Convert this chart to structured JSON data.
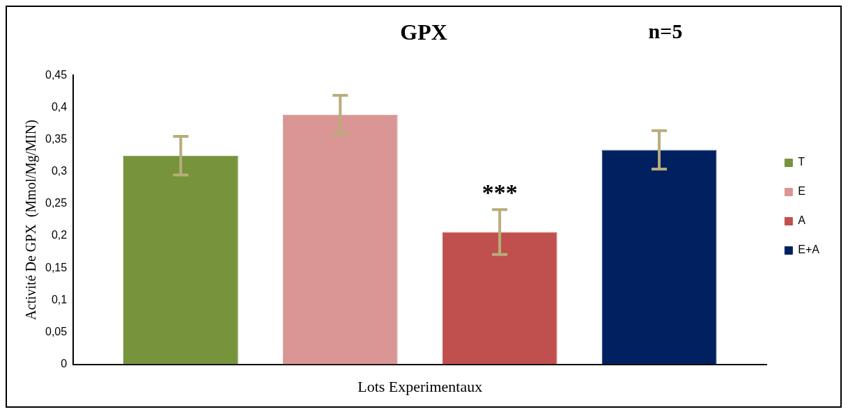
{
  "chart_data": {
    "type": "bar",
    "title": "GPX",
    "xlabel": "Lots Experimentaux",
    "ylabel": "Activité De GPX  (Mmol/Mg/MIN)",
    "categories": [
      null
    ],
    "series": [
      {
        "name": "T",
        "color": "#77933c",
        "values": [
          0.325
        ],
        "errors": [
          0.03
        ]
      },
      {
        "name": "E",
        "color": "#d99694",
        "values": [
          0.389
        ],
        "errors": [
          0.03
        ]
      },
      {
        "name": "A",
        "color": "#c0504d",
        "values": [
          0.206
        ],
        "errors": [
          0.035
        ]
      },
      {
        "name": "E+A",
        "color": "#002060",
        "values": [
          0.334
        ],
        "errors": [
          0.03
        ]
      }
    ],
    "ylim": [
      0,
      0.45
    ],
    "yticks": [
      {
        "value": 0,
        "label": "0"
      },
      {
        "value": 0.05,
        "label": "0,05"
      },
      {
        "value": 0.1,
        "label": "0,1"
      },
      {
        "value": 0.15,
        "label": "0,15"
      },
      {
        "value": 0.2,
        "label": "0,2"
      },
      {
        "value": 0.25,
        "label": "0,25"
      },
      {
        "value": 0.3,
        "label": "0,3"
      },
      {
        "value": 0.35,
        "label": "0,35"
      },
      {
        "value": 0.4,
        "label": "0,4"
      },
      {
        "value": 0.45,
        "label": "0,45"
      }
    ],
    "annotations": [
      "n=5",
      "***"
    ],
    "grid": false,
    "legend": "right"
  }
}
